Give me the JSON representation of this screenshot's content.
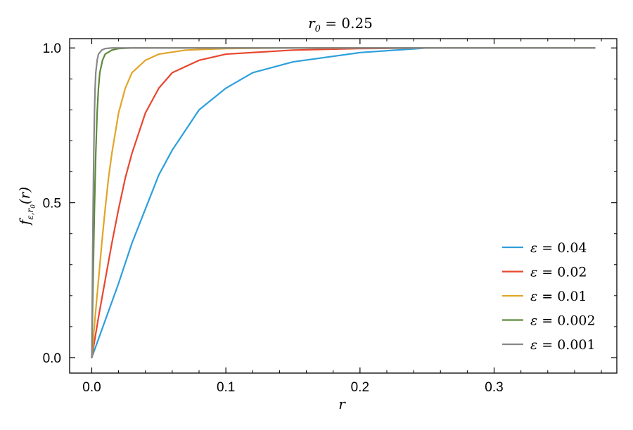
{
  "chart_data": {
    "type": "line",
    "title": "r_0 = 0.25",
    "title_parts": {
      "var": "r",
      "sub": "0",
      "rest": " = 0.25"
    },
    "xlabel": "r",
    "ylabel": "f_{ε,r_0}(r)",
    "ylabel_parts": {
      "f": "f",
      "sub": "ε,r",
      "subsub": "0",
      "rest": "(r)"
    },
    "xlim": [
      -0.0165,
      0.3915
    ],
    "ylim": [
      -0.05,
      1.03
    ],
    "xticks": [
      0.0,
      0.1,
      0.2,
      0.3
    ],
    "xtick_labels": [
      "0.0",
      "0.1",
      "0.2",
      "0.3"
    ],
    "yticks": [
      0.0,
      0.5,
      1.0
    ],
    "ytick_labels": [
      "0.0",
      "0.5",
      "1.0"
    ],
    "x_minor_step": 0.02,
    "y_minor_step": 0.1,
    "grid": false,
    "legend_position": "lower-right",
    "r0": 0.25,
    "x_max": 0.375,
    "series": [
      {
        "name": "ε = 0.04",
        "epsilon": 0.04,
        "color": "#2e9fdb",
        "x": [
          0,
          0.01,
          0.02,
          0.03,
          0.04,
          0.05,
          0.06,
          0.08,
          0.1,
          0.12,
          0.15,
          0.2,
          0.25,
          0.3,
          0.375
        ],
        "y": [
          0,
          0.12,
          0.24,
          0.37,
          0.48,
          0.59,
          0.67,
          0.8,
          0.87,
          0.92,
          0.955,
          0.985,
          1.0,
          1.0,
          1.0
        ]
      },
      {
        "name": "ε = 0.02",
        "epsilon": 0.02,
        "color": "#e8462f",
        "x": [
          0,
          0.005,
          0.01,
          0.015,
          0.02,
          0.025,
          0.03,
          0.04,
          0.05,
          0.06,
          0.08,
          0.1,
          0.15,
          0.2,
          0.25,
          0.3,
          0.375
        ],
        "y": [
          0,
          0.13,
          0.25,
          0.37,
          0.48,
          0.58,
          0.66,
          0.79,
          0.87,
          0.92,
          0.96,
          0.98,
          0.993,
          0.998,
          1.0,
          1.0,
          1.0
        ]
      },
      {
        "name": "ε = 0.01",
        "epsilon": 0.01,
        "color": "#e2a429",
        "x": [
          0,
          0.0025,
          0.005,
          0.0075,
          0.01,
          0.0125,
          0.015,
          0.02,
          0.025,
          0.03,
          0.04,
          0.05,
          0.07,
          0.1,
          0.15,
          0.25,
          0.3,
          0.375
        ],
        "y": [
          0,
          0.13,
          0.25,
          0.37,
          0.48,
          0.58,
          0.66,
          0.79,
          0.87,
          0.92,
          0.96,
          0.98,
          0.993,
          0.998,
          1.0,
          1.0,
          1.0,
          1.0
        ]
      },
      {
        "name": "ε = 0.002",
        "epsilon": 0.002,
        "color": "#5d8a3b",
        "x": [
          0,
          0.0005,
          0.001,
          0.0015,
          0.002,
          0.003,
          0.004,
          0.005,
          0.006,
          0.008,
          0.01,
          0.015,
          0.02,
          0.03,
          0.05,
          0.25,
          0.375
        ],
        "y": [
          0,
          0.13,
          0.25,
          0.37,
          0.48,
          0.66,
          0.79,
          0.87,
          0.92,
          0.96,
          0.98,
          0.993,
          0.998,
          1.0,
          1.0,
          1.0,
          1.0
        ]
      },
      {
        "name": "ε = 0.001",
        "epsilon": 0.001,
        "color": "#888888",
        "x": [
          0,
          0.00025,
          0.0005,
          0.00075,
          0.001,
          0.0015,
          0.002,
          0.0025,
          0.003,
          0.004,
          0.005,
          0.0075,
          0.01,
          0.015,
          0.03,
          0.25,
          0.375
        ],
        "y": [
          0,
          0.13,
          0.25,
          0.37,
          0.48,
          0.66,
          0.79,
          0.87,
          0.92,
          0.96,
          0.98,
          0.993,
          0.998,
          1.0,
          1.0,
          1.0,
          1.0
        ]
      }
    ],
    "legend": {
      "symbol": "ε",
      "entries": [
        {
          "label": "ε = 0.04",
          "value": "0.04",
          "color": "#2e9fdb"
        },
        {
          "label": "ε = 0.02",
          "value": "0.02",
          "color": "#e8462f"
        },
        {
          "label": "ε = 0.01",
          "value": "0.01",
          "color": "#e2a429"
        },
        {
          "label": "ε = 0.002",
          "value": "0.002",
          "color": "#5d8a3b"
        },
        {
          "label": "ε = 0.001",
          "value": "0.001",
          "color": "#888888"
        }
      ]
    }
  }
}
